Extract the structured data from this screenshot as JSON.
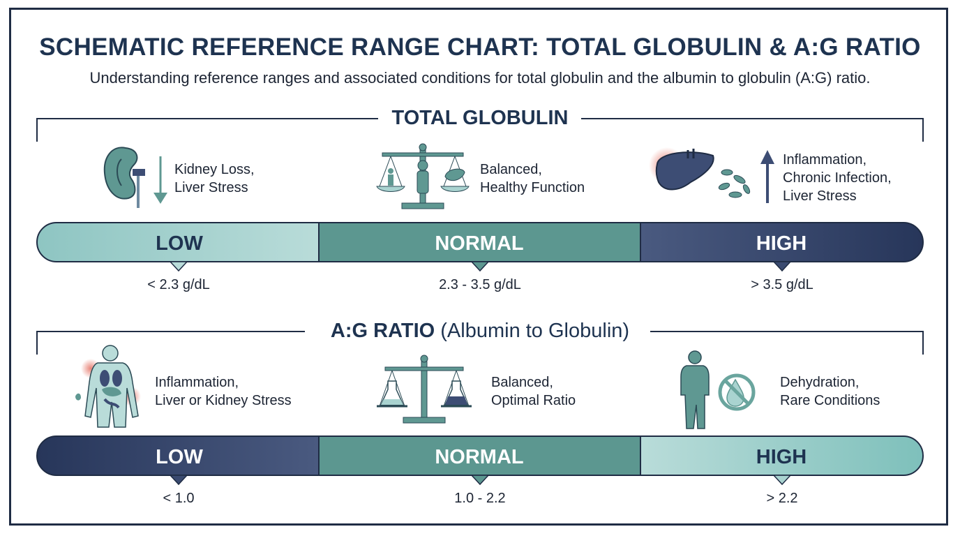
{
  "title": "SCHEMATIC REFERENCE RANGE CHART: TOTAL GLOBULIN & A:G RATIO",
  "subtitle": "Understanding reference ranges and associated conditions for total globulin and the albumin to globulin (A:G) ratio.",
  "sections": [
    {
      "heading": "TOTAL GLOBULIN",
      "heading_paren": "",
      "segments": [
        {
          "label": "LOW",
          "range": "< 2.3 g/dL",
          "cond_lines": [
            "Kidney Loss,",
            "Liver Stress"
          ],
          "icon": "kidney-icon",
          "arrow": "down"
        },
        {
          "label": "NORMAL",
          "range": "2.3 - 3.5 g/dL",
          "cond_lines": [
            "Balanced,",
            "Healthy Function"
          ],
          "icon": "balance-scale-icon"
        },
        {
          "label": "HIGH",
          "range": "> 3.5 g/dL",
          "cond_lines": [
            "Inflammation,",
            "Chronic Infection,",
            "Liver Stress"
          ],
          "icon": "liver-bacteria-icon",
          "arrow": "up"
        }
      ],
      "colors": {
        "low": "#a9d3d0",
        "normal": "#5c9790",
        "high": "#3d4d74"
      }
    },
    {
      "heading": "A:G RATIO",
      "heading_paren": "(Albumin to Globulin)",
      "segments": [
        {
          "label": "LOW",
          "range": "< 1.0",
          "cond_lines": [
            "Inflammation,",
            "Liver or Kidney Stress"
          ],
          "icon": "body-organs-icon"
        },
        {
          "label": "NORMAL",
          "range": "1.0 - 2.2",
          "cond_lines": [
            "Balanced,",
            "Optimal Ratio"
          ],
          "icon": "flask-scale-icon"
        },
        {
          "label": "HIGH",
          "range": "> 2.2",
          "cond_lines": [
            "Dehydration,",
            "Rare Conditions"
          ],
          "icon": "no-water-drop-icon"
        }
      ],
      "colors": {
        "low": "#3d4d74",
        "normal": "#5c9790",
        "high": "#a9d3d0"
      }
    }
  ]
}
